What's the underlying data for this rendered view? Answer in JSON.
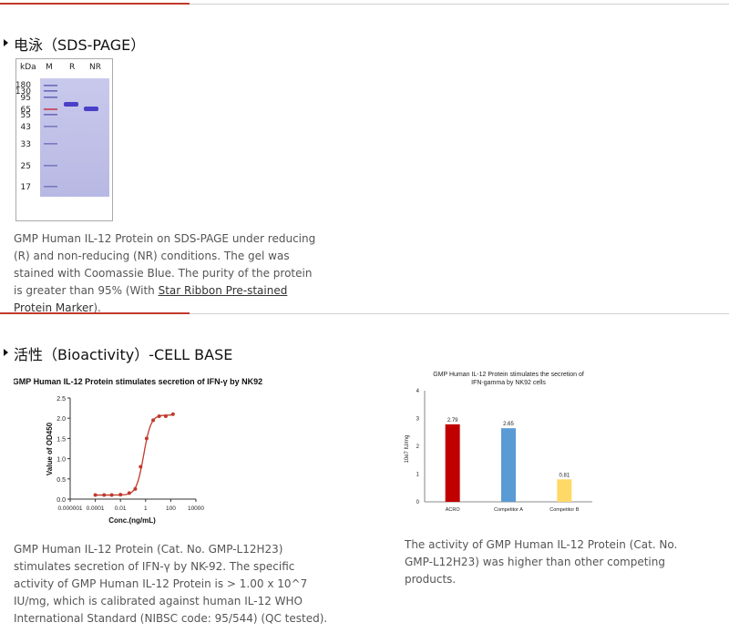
{
  "sds": {
    "title": "电泳（SDS-PAGE）",
    "gel": {
      "headers": [
        "kDa",
        "M",
        "R",
        "NR"
      ],
      "markers": [
        "180",
        "130",
        "95",
        "65",
        "55",
        "43",
        "33",
        "25",
        "17"
      ]
    },
    "caption_parts": [
      "GMP Human IL-12 Protein on SDS-PAGE under reducing (R) and non-reducing (NR) conditions. The gel was stained with Coomassie Blue. The purity of the protein is greater than 95% (With ",
      "Star Ribbon Pre-stained Protein Marker",
      ")."
    ]
  },
  "bioactivity": {
    "title": "活性（Bioactivity）-CELL BASE",
    "caption_left": "GMP Human IL-12 Protein (Cat. No. GMP-L12H23) stimulates secretion of IFN-γ by NK-92. The specific activity of GMP Human IL-12 Protein is > 1.00 x 10^7 IU/mg, which is calibrated against human IL-12 WHO International Standard (NIBSC code: 95/544) (QC tested).",
    "caption_right": "The activity of GMP Human IL-12 Protein (Cat. No. GMP-L12H23) was higher than other competing products."
  },
  "chart_data": [
    {
      "type": "scatter",
      "title": "GMP Human IL-12 Protein stimulates secretion of IFN-γ by NK92",
      "xlabel": "Conc.(ng/mL)",
      "ylabel": "Value of OD450",
      "xscale": "log",
      "xlim": [
        1e-06,
        10000
      ],
      "ylim": [
        0,
        2.5
      ],
      "xticks": [
        "0.000001",
        "0.0001",
        "0.01",
        "1",
        "100",
        "10000"
      ],
      "yticks": [
        "0.0",
        "0.5",
        "1.0",
        "1.5",
        "2.0",
        "2.5"
      ],
      "x": [
        0.0001,
        0.0005,
        0.002,
        0.01,
        0.05,
        0.15,
        0.4,
        1.2,
        4,
        12,
        40,
        150
      ],
      "y": [
        0.1,
        0.1,
        0.1,
        0.11,
        0.15,
        0.25,
        0.8,
        1.5,
        1.95,
        2.05,
        2.05,
        2.1
      ],
      "color": "#c0392b",
      "fit": "sigmoidal"
    },
    {
      "type": "bar",
      "title": "GMP Human IL-12 Protein stimulates the secretion of IFN-gamma by NK92 cells",
      "ylabel": "10e7 IU/mg",
      "categories": [
        "ACRO",
        "Competitor A",
        "Competitor B"
      ],
      "values": [
        2.79,
        2.65,
        0.81
      ],
      "labels": [
        "2.79",
        "2.65",
        "0.81"
      ],
      "colors": [
        "#c00000",
        "#5b9bd5",
        "#ffd966"
      ],
      "ylim": [
        0,
        4
      ],
      "yticks": [
        "0",
        "1",
        "2",
        "3",
        "4"
      ]
    }
  ]
}
